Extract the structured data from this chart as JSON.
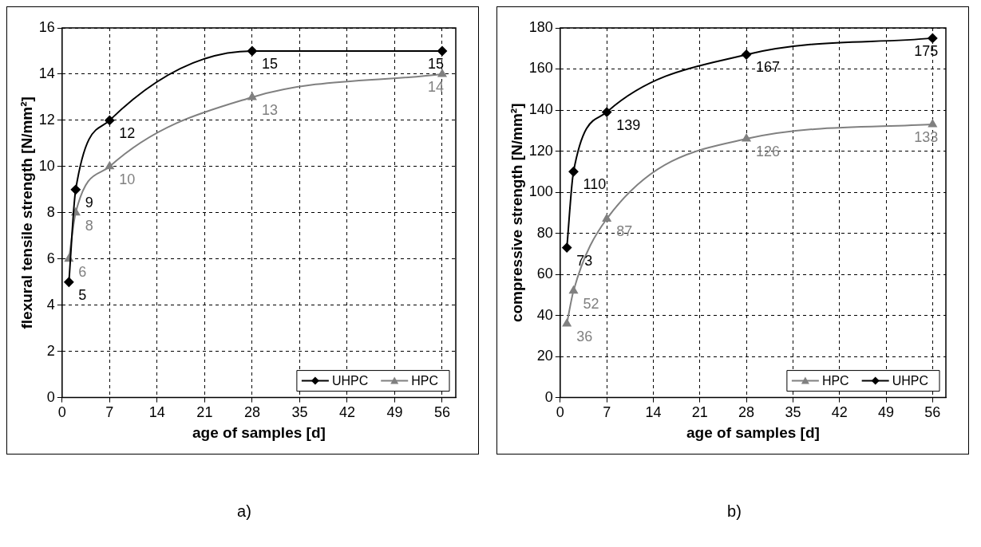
{
  "chart_data": [
    {
      "type": "line",
      "xlabel": "age of samples [d]",
      "ylabel": "flexural tensile strength [N/mm²]",
      "x": [
        1,
        2,
        7,
        28,
        56
      ],
      "series": [
        {
          "name": "UHPC",
          "color": "#000000",
          "marker": "diamond",
          "values": [
            5,
            9,
            12,
            15,
            15
          ]
        },
        {
          "name": "HPC",
          "color": "#808080",
          "marker": "triangle",
          "values": [
            6,
            8,
            10,
            13,
            14
          ]
        }
      ],
      "xlim": [
        0,
        58
      ],
      "xticks": [
        0,
        7,
        14,
        21,
        28,
        35,
        42,
        49,
        56
      ],
      "ylim": [
        0,
        16
      ],
      "yticks": [
        0,
        2,
        4,
        6,
        8,
        10,
        12,
        14,
        16
      ],
      "grid": true,
      "legend": "bottom right",
      "data_labels": true,
      "annotations": [
        "a)"
      ]
    },
    {
      "type": "line",
      "xlabel": "age of samples [d]",
      "ylabel": "compressive strength [N/mm²]",
      "x": [
        1,
        2,
        7,
        28,
        56
      ],
      "series": [
        {
          "name": "HPC",
          "color": "#808080",
          "marker": "triangle",
          "values": [
            36,
            52,
            87,
            126,
            133
          ]
        },
        {
          "name": "UHPC",
          "color": "#000000",
          "marker": "diamond",
          "values": [
            73,
            110,
            139,
            167,
            175
          ]
        }
      ],
      "xlim": [
        0,
        58
      ],
      "xticks": [
        0,
        7,
        14,
        21,
        28,
        35,
        42,
        49,
        56
      ],
      "ylim": [
        0,
        180
      ],
      "yticks": [
        0,
        20,
        40,
        60,
        80,
        100,
        120,
        140,
        160,
        180
      ],
      "grid": true,
      "legend": "bottom right",
      "data_labels": true,
      "annotations": [
        "b)"
      ]
    }
  ]
}
